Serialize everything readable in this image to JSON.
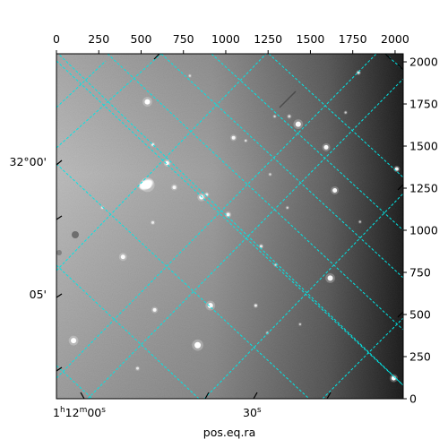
{
  "chart_data": {
    "type": "image",
    "title": "",
    "xlabel": "pos.eq.ra",
    "ylabel": "",
    "colormap": "gray",
    "pixel_axes": {
      "top_ticks": [
        0,
        250,
        500,
        750,
        1000,
        1250,
        1500,
        1750,
        2000
      ],
      "right_ticks": [
        0,
        250,
        500,
        750,
        1000,
        1250,
        1500,
        1750,
        2000
      ],
      "xlim": [
        0,
        2048
      ],
      "ylim": [
        0,
        2048
      ]
    },
    "world_axes": {
      "ra_tick_labels": [
        {
          "main": "1",
          "sup1": "h",
          "mid": "12",
          "sup2": "m",
          "tail": "00",
          "sup3": "s"
        },
        {
          "main": "30",
          "sup1": "s",
          "mid": "",
          "sup2": "",
          "tail": "",
          "sup3": ""
        }
      ],
      "dec_tick_labels": [
        "32°00'",
        "05'"
      ]
    },
    "grid": true,
    "grid_color": "#00e5e5",
    "background_gradient": [
      "#b8b8b8",
      "#9a9a9a",
      "#5a5a5a",
      "#111111"
    ],
    "stars": [
      {
        "x": 537,
        "y": 1763,
        "r": 3,
        "b": 1.0
      },
      {
        "x": 1428,
        "y": 1630,
        "r": 3,
        "b": 0.95
      },
      {
        "x": 1593,
        "y": 1493,
        "r": 2.5,
        "b": 0.95
      },
      {
        "x": 1046,
        "y": 1549,
        "r": 2,
        "b": 0.9
      },
      {
        "x": 569,
        "y": 1509,
        "r": 1.5,
        "b": 0.75
      },
      {
        "x": 654,
        "y": 1399,
        "r": 2.2,
        "b": 0.95
      },
      {
        "x": 537,
        "y": 1270,
        "r": 4.5,
        "b": 1.0
      },
      {
        "x": 696,
        "y": 1255,
        "r": 2,
        "b": 0.9
      },
      {
        "x": 856,
        "y": 1196,
        "r": 2.5,
        "b": 0.95
      },
      {
        "x": 888,
        "y": 1212,
        "r": 1.5,
        "b": 0.8
      },
      {
        "x": 1014,
        "y": 1093,
        "r": 2,
        "b": 0.9
      },
      {
        "x": 1644,
        "y": 1237,
        "r": 2.5,
        "b": 0.95
      },
      {
        "x": 1209,
        "y": 905,
        "r": 1.5,
        "b": 0.8
      },
      {
        "x": 1784,
        "y": 1936,
        "r": 1.5,
        "b": 0.85
      },
      {
        "x": 2010,
        "y": 1364,
        "r": 2,
        "b": 0.95
      },
      {
        "x": 1617,
        "y": 716,
        "r": 3,
        "b": 0.95
      },
      {
        "x": 393,
        "y": 842,
        "r": 2.5,
        "b": 0.95
      },
      {
        "x": 569,
        "y": 1046,
        "r": 1.5,
        "b": 0.75
      },
      {
        "x": 580,
        "y": 527,
        "r": 2,
        "b": 0.9
      },
      {
        "x": 909,
        "y": 553,
        "r": 3,
        "b": 0.95
      },
      {
        "x": 1177,
        "y": 553,
        "r": 1.5,
        "b": 0.8
      },
      {
        "x": 834,
        "y": 318,
        "r": 3.5,
        "b": 1.0
      },
      {
        "x": 101,
        "y": 345,
        "r": 3,
        "b": 1.0
      },
      {
        "x": 271,
        "y": 1134,
        "r": 1.2,
        "b": 0.7
      },
      {
        "x": 1118,
        "y": 1532,
        "r": 1.2,
        "b": 0.7
      },
      {
        "x": 1289,
        "y": 1676,
        "r": 1.2,
        "b": 0.65
      },
      {
        "x": 1375,
        "y": 1676,
        "r": 1.5,
        "b": 0.7
      },
      {
        "x": 1262,
        "y": 1332,
        "r": 1.2,
        "b": 0.65
      },
      {
        "x": 1708,
        "y": 1699,
        "r": 1.2,
        "b": 0.65
      },
      {
        "x": 1364,
        "y": 1134,
        "r": 1.2,
        "b": 0.65
      },
      {
        "x": 1294,
        "y": 794,
        "r": 1.2,
        "b": 0.65
      },
      {
        "x": 479,
        "y": 180,
        "r": 1.5,
        "b": 0.75
      },
      {
        "x": 1439,
        "y": 442,
        "r": 1.2,
        "b": 0.6
      },
      {
        "x": 1246,
        "y": 391,
        "r": 1.2,
        "b": 0.6
      },
      {
        "x": 1992,
        "y": 122,
        "r": 2.5,
        "b": 1.0
      },
      {
        "x": 1793,
        "y": 1050,
        "r": 1.2,
        "b": 0.6
      },
      {
        "x": 788,
        "y": 1917,
        "r": 1.2,
        "b": 0.6
      }
    ]
  }
}
